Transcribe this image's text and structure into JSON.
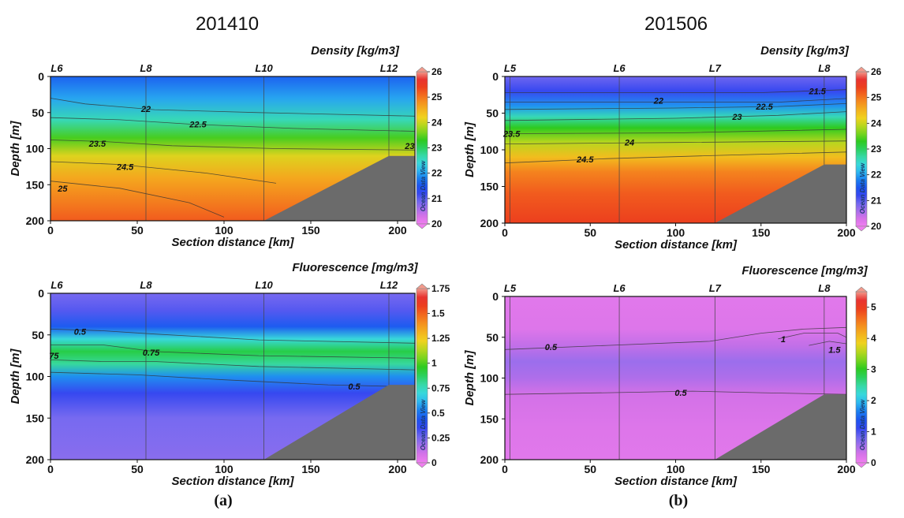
{
  "column_titles": [
    "201410",
    "201506"
  ],
  "panel_letters": [
    "(a)",
    "(b)"
  ],
  "chart_data": [
    {
      "type": "heatmap",
      "title": "Density [kg/m3]",
      "column": "201410",
      "xlabel": "Section distance [km]",
      "ylabel": "Depth [m]",
      "xlim": [
        0,
        210
      ],
      "ylim": [
        200,
        0
      ],
      "xticks": [
        0,
        50,
        100,
        150,
        200
      ],
      "yticks": [
        0,
        50,
        100,
        150,
        200
      ],
      "stations": [
        {
          "name": "L6",
          "x": 0
        },
        {
          "name": "L8",
          "x": 55
        },
        {
          "name": "L10",
          "x": 123
        },
        {
          "name": "L12",
          "x": 195
        }
      ],
      "colorbar": {
        "min": 20,
        "max": 26,
        "ticks": [
          "26",
          "25",
          "24",
          "23",
          "22",
          "21",
          "20"
        ]
      },
      "field_profile": {
        "depth": [
          0,
          30,
          60,
          85,
          110,
          140,
          180,
          200
        ],
        "value": [
          21.6,
          22.0,
          22.6,
          23.4,
          24.1,
          24.6,
          25.0,
          25.2
        ]
      },
      "bottom": {
        "x": [
          123,
          195,
          210
        ],
        "depth": [
          200,
          110,
          110
        ]
      },
      "contours": [
        {
          "level": "22",
          "points": [
            [
              0,
              30
            ],
            [
              20,
              38
            ],
            [
              60,
              46
            ],
            [
              120,
              50
            ],
            [
              210,
              55
            ]
          ]
        },
        {
          "level": "22.5",
          "points": [
            [
              0,
              57
            ],
            [
              40,
              60
            ],
            [
              80,
              66
            ],
            [
              140,
              72
            ],
            [
              210,
              76
            ]
          ]
        },
        {
          "level": "23.5",
          "points": [
            [
              0,
              88
            ],
            [
              30,
              90
            ],
            [
              70,
              96
            ],
            [
              130,
              100
            ],
            [
              210,
              102
            ]
          ]
        },
        {
          "level": "24.5",
          "points": [
            [
              0,
              118
            ],
            [
              40,
              122
            ],
            [
              90,
              134
            ],
            [
              130,
              148
            ]
          ]
        },
        {
          "level": "25",
          "points": [
            [
              0,
              145
            ],
            [
              40,
              155
            ],
            [
              80,
              175
            ],
            [
              100,
              195
            ]
          ]
        }
      ],
      "contour_labels": [
        {
          "text": "22",
          "x": 55,
          "depth": 45
        },
        {
          "text": "22.5",
          "x": 85,
          "depth": 66
        },
        {
          "text": "23.5",
          "x": 27,
          "depth": 93
        },
        {
          "text": "24.5",
          "x": 43,
          "depth": 125
        },
        {
          "text": "25",
          "x": 7,
          "depth": 155
        },
        {
          "text": "23",
          "x": 207,
          "depth": 96
        }
      ],
      "watermark": "Ocean Data View"
    },
    {
      "type": "heatmap",
      "title": "Density [kg/m3]",
      "column": "201506",
      "xlabel": "Section distance [km]",
      "ylabel": "Depth [m]",
      "xlim": [
        0,
        200
      ],
      "ylim": [
        200,
        0
      ],
      "xticks": [
        0,
        50,
        100,
        150,
        200
      ],
      "yticks": [
        0,
        50,
        100,
        150,
        200
      ],
      "stations": [
        {
          "name": "L5",
          "x": 3
        },
        {
          "name": "L6",
          "x": 67
        },
        {
          "name": "L7",
          "x": 123
        },
        {
          "name": "L8",
          "x": 187
        }
      ],
      "colorbar": {
        "min": 20,
        "max": 26,
        "ticks": [
          "26",
          "25",
          "24",
          "23",
          "22",
          "21",
          "20"
        ]
      },
      "field_profile": {
        "depth": [
          0,
          20,
          40,
          55,
          70,
          90,
          110,
          130,
          160,
          200
        ],
        "value": [
          20.9,
          21.2,
          21.9,
          22.6,
          23.3,
          23.9,
          24.4,
          24.9,
          25.2,
          25.4
        ]
      },
      "bottom": {
        "x": [
          123,
          187,
          200
        ],
        "depth": [
          200,
          120,
          120
        ]
      },
      "contours": [
        {
          "level": "21.5",
          "points": [
            [
              0,
              22
            ],
            [
              100,
              22
            ],
            [
              150,
              22
            ],
            [
              200,
              18
            ]
          ]
        },
        {
          "level": "22",
          "points": [
            [
              0,
              35
            ],
            [
              100,
              35
            ],
            [
              160,
              35
            ],
            [
              200,
              30
            ]
          ]
        },
        {
          "level": "22.5",
          "points": [
            [
              0,
              45
            ],
            [
              100,
              43
            ],
            [
              160,
              41
            ],
            [
              200,
              37
            ]
          ]
        },
        {
          "level": "23",
          "points": [
            [
              0,
              60
            ],
            [
              100,
              57
            ],
            [
              160,
              53
            ],
            [
              200,
              48
            ]
          ]
        },
        {
          "level": "23.5",
          "points": [
            [
              0,
              78
            ],
            [
              100,
              77
            ],
            [
              200,
              72
            ]
          ]
        },
        {
          "level": "24",
          "points": [
            [
              0,
              92
            ],
            [
              100,
              90
            ],
            [
              200,
              88
            ]
          ]
        },
        {
          "level": "24.5",
          "points": [
            [
              0,
              118
            ],
            [
              60,
              112
            ],
            [
              120,
              108
            ],
            [
              200,
              103
            ]
          ]
        }
      ],
      "contour_labels": [
        {
          "text": "21.5",
          "x": 183,
          "depth": 20
        },
        {
          "text": "22",
          "x": 90,
          "depth": 33
        },
        {
          "text": "22.5",
          "x": 152,
          "depth": 41
        },
        {
          "text": "23",
          "x": 136,
          "depth": 55
        },
        {
          "text": "23.5",
          "x": 4,
          "depth": 78
        },
        {
          "text": "24",
          "x": 73,
          "depth": 90
        },
        {
          "text": "24.5",
          "x": 47,
          "depth": 113
        }
      ],
      "watermark": "Ocean Data View"
    },
    {
      "type": "heatmap",
      "title": "Fluorescence [mg/m3]",
      "column": "201410",
      "xlabel": "Section distance [km]",
      "ylabel": "Depth [m]",
      "xlim": [
        0,
        210
      ],
      "ylim": [
        200,
        0
      ],
      "xticks": [
        0,
        50,
        100,
        150,
        200
      ],
      "yticks": [
        0,
        50,
        100,
        150,
        200
      ],
      "stations": [
        {
          "name": "L6",
          "x": 0
        },
        {
          "name": "L8",
          "x": 55
        },
        {
          "name": "L10",
          "x": 123
        },
        {
          "name": "L12",
          "x": 195
        }
      ],
      "colorbar": {
        "min": 0,
        "max": 1.75,
        "ticks": [
          "1.75",
          "1.5",
          "1.25",
          "1",
          "0.75",
          "0.5",
          "0.25",
          "0"
        ]
      },
      "field_profile": {
        "depth": [
          0,
          20,
          40,
          55,
          70,
          85,
          100,
          120,
          150,
          200
        ],
        "value": [
          0.25,
          0.3,
          0.45,
          0.7,
          0.9,
          0.8,
          0.55,
          0.35,
          0.25,
          0.22
        ]
      },
      "bottom": {
        "x": [
          123,
          195,
          210
        ],
        "depth": [
          200,
          110,
          110
        ]
      },
      "contours": [
        {
          "level": "0.5",
          "points": [
            [
              0,
              43
            ],
            [
              30,
              45
            ],
            [
              60,
              49
            ],
            [
              120,
              56
            ],
            [
              210,
              60
            ]
          ]
        },
        {
          "level": "0.75",
          "points": [
            [
              0,
              62
            ],
            [
              30,
              62
            ],
            [
              60,
              70
            ],
            [
              120,
              75
            ],
            [
              210,
              78
            ]
          ]
        },
        {
          "level": "0.75",
          "points": [
            [
              0,
              80
            ],
            [
              30,
              82
            ],
            [
              60,
              82
            ],
            [
              120,
              88
            ],
            [
              210,
              92
            ]
          ]
        },
        {
          "level": "0.5",
          "points": [
            [
              0,
              95
            ],
            [
              50,
              98
            ],
            [
              100,
              104
            ],
            [
              160,
              110
            ],
            [
              200,
              112
            ]
          ]
        }
      ],
      "contour_labels": [
        {
          "text": "0.5",
          "x": 17,
          "depth": 46
        },
        {
          "text": "0.75",
          "x": 58,
          "depth": 71
        },
        {
          "text": "75",
          "x": 2,
          "depth": 75
        },
        {
          "text": "0.5",
          "x": 175,
          "depth": 112
        }
      ],
      "watermark": "Ocean Data View"
    },
    {
      "type": "heatmap",
      "title": "Fluorescence [mg/m3]",
      "column": "201506",
      "xlabel": "Section distance [km]",
      "ylabel": "Depth [m]",
      "xlim": [
        0,
        200
      ],
      "ylim": [
        200,
        0
      ],
      "xticks": [
        0,
        50,
        100,
        150,
        200
      ],
      "yticks": [
        0,
        50,
        100,
        150,
        200
      ],
      "stations": [
        {
          "name": "L5",
          "x": 3
        },
        {
          "name": "L6",
          "x": 67
        },
        {
          "name": "L7",
          "x": 123
        },
        {
          "name": "L8",
          "x": 187
        }
      ],
      "colorbar": {
        "min": 0,
        "max": 5.5,
        "ticks": [
          "5",
          "4",
          "3",
          "2",
          "1",
          "0"
        ]
      },
      "field_profile": {
        "depth": [
          0,
          40,
          60,
          80,
          100,
          120,
          160,
          200
        ],
        "value": [
          0.15,
          0.2,
          0.4,
          0.6,
          0.5,
          0.3,
          0.2,
          0.15
        ]
      },
      "bottom": {
        "x": [
          123,
          187,
          200
        ],
        "depth": [
          200,
          120,
          120
        ]
      },
      "contours": [
        {
          "level": "0.5",
          "points": [
            [
              0,
              65
            ],
            [
              60,
              60
            ],
            [
              120,
              55
            ],
            [
              150,
              45
            ],
            [
              175,
              40
            ],
            [
              200,
              38
            ]
          ]
        },
        {
          "level": "1",
          "points": [
            [
              160,
              52
            ],
            [
              175,
              45
            ],
            [
              195,
              45
            ],
            [
              200,
              50
            ]
          ]
        },
        {
          "level": "1.5",
          "points": [
            [
              178,
              60
            ],
            [
              190,
              55
            ],
            [
              200,
              58
            ]
          ]
        },
        {
          "level": "0.5",
          "points": [
            [
              0,
              120
            ],
            [
              60,
              118
            ],
            [
              110,
              116
            ],
            [
              150,
              118
            ],
            [
              200,
              120
            ]
          ]
        }
      ],
      "contour_labels": [
        {
          "text": "0.5",
          "x": 27,
          "depth": 62
        },
        {
          "text": "1",
          "x": 163,
          "depth": 52
        },
        {
          "text": "1.5",
          "x": 193,
          "depth": 65
        },
        {
          "text": "0.5",
          "x": 103,
          "depth": 118
        }
      ],
      "watermark": "Ocean Data View"
    }
  ]
}
